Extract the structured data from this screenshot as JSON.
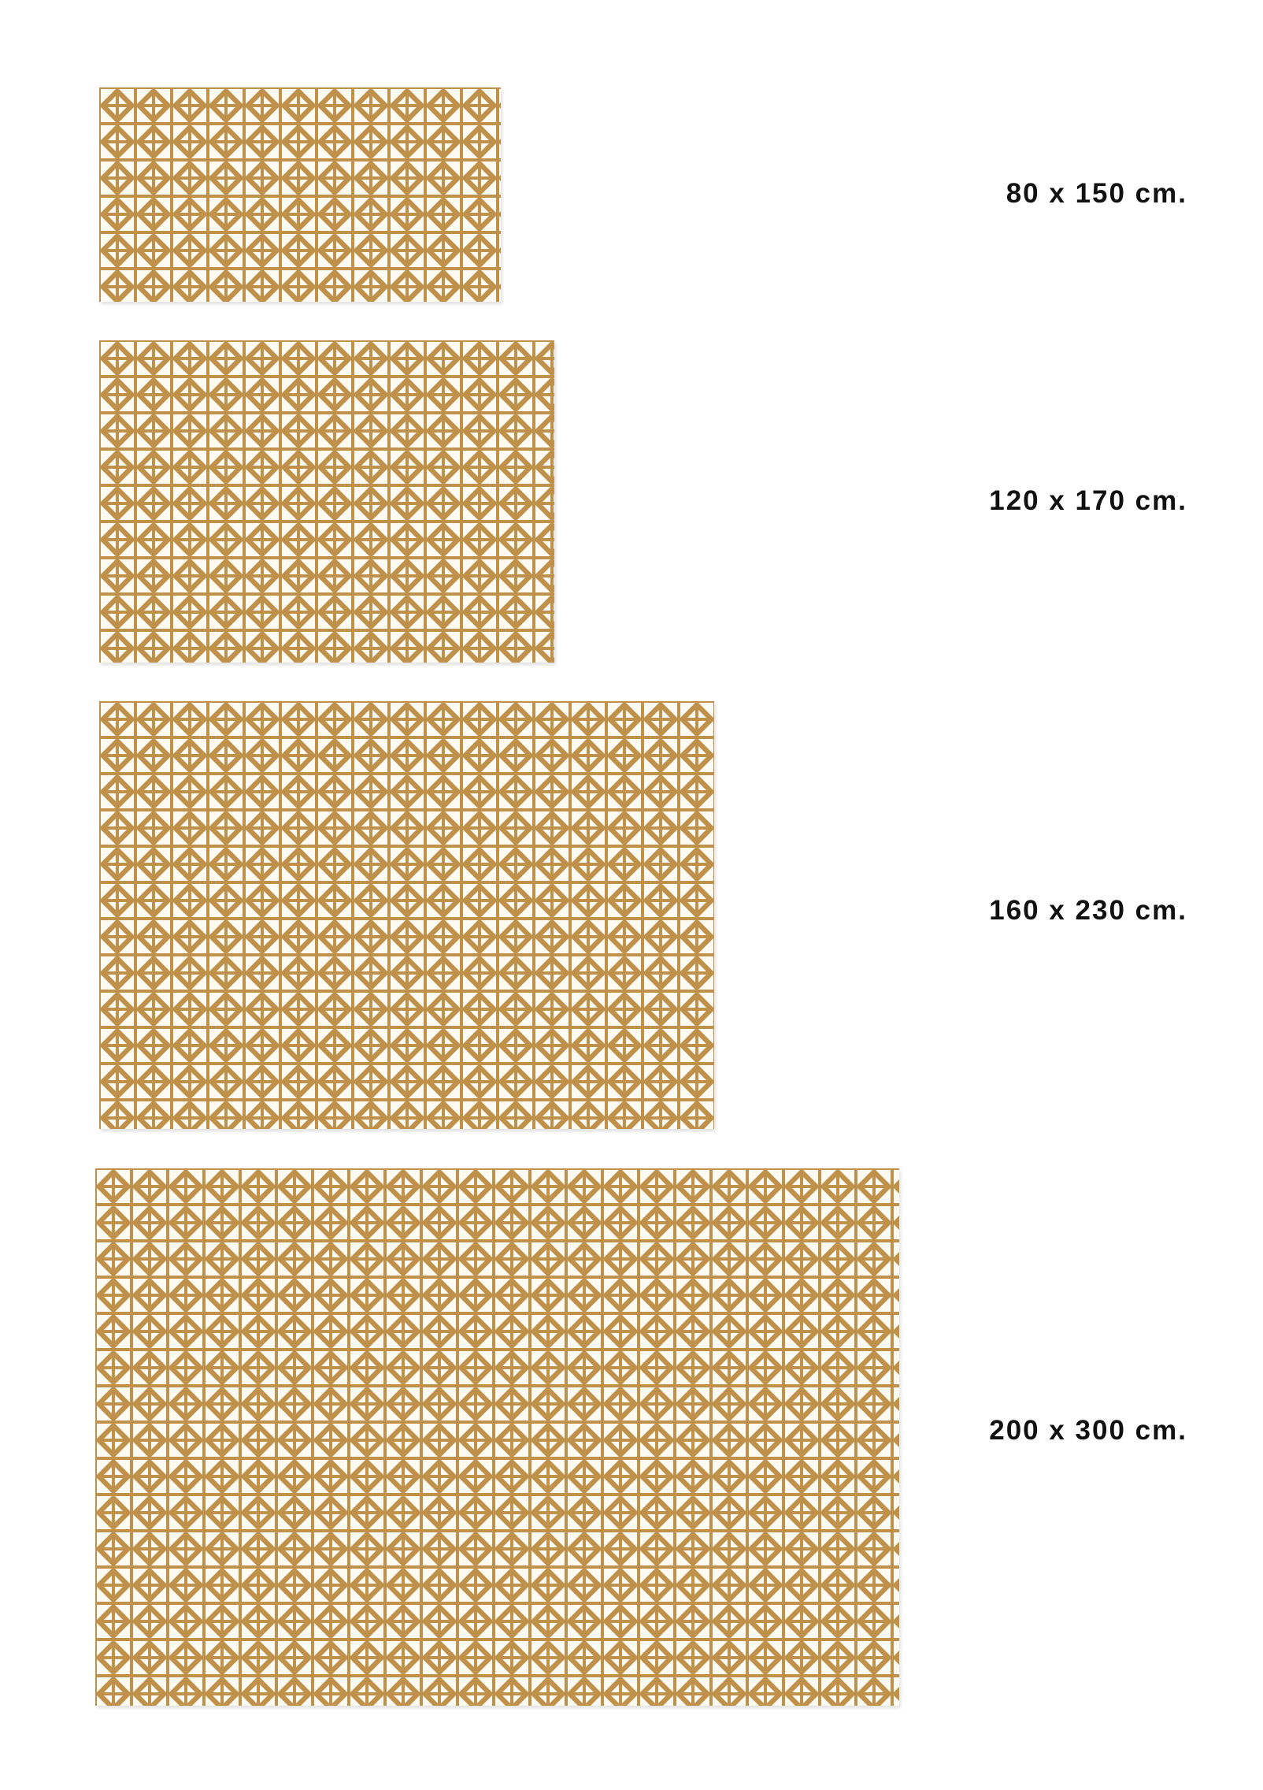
{
  "colors": {
    "pattern_gold": "#c0914a",
    "pattern_light": "#fdfaf2"
  },
  "pattern_icon": "geometric-pinwheel-triangles",
  "rugs": [
    {
      "size_label": "80 x 150 cm."
    },
    {
      "size_label": "120 x 170 cm."
    },
    {
      "size_label": "160 x 230 cm."
    },
    {
      "size_label": "200 x 300 cm."
    }
  ]
}
